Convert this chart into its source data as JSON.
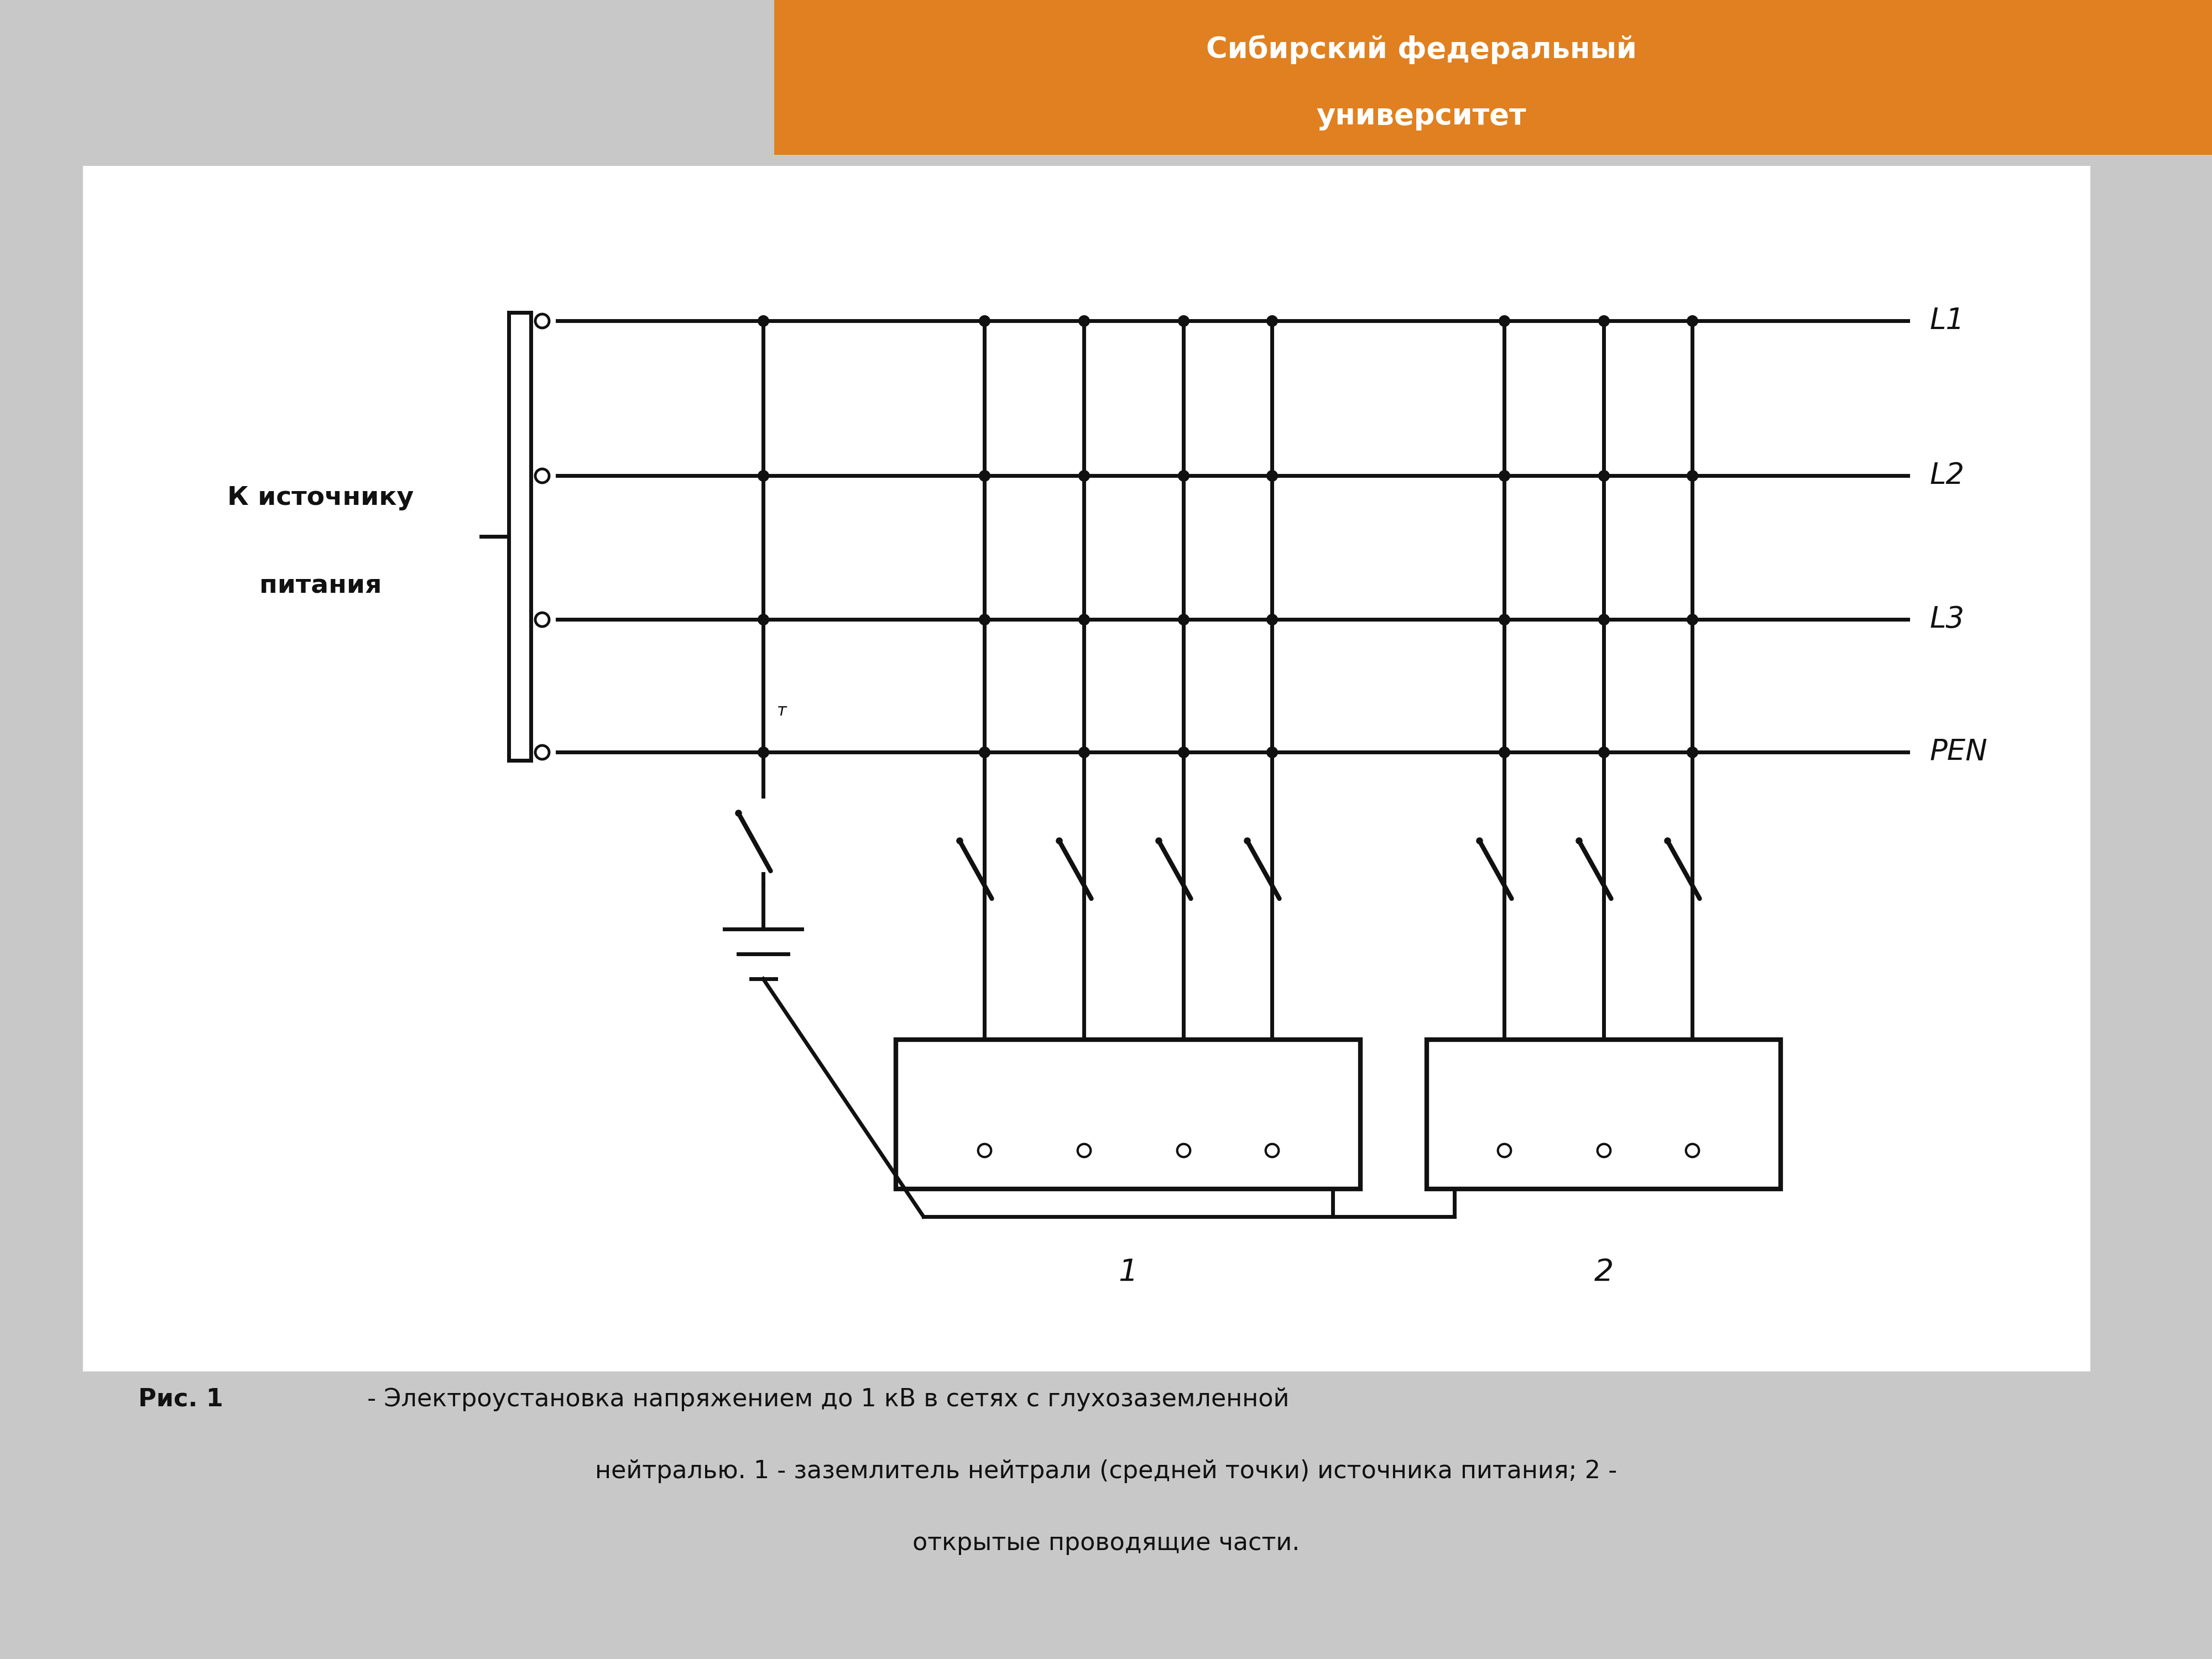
{
  "bg_color": "#c8c8c8",
  "diagram_bg": "#ffffff",
  "orange_color": "#e08020",
  "white_text": "#ffffff",
  "black": "#111111",
  "title_line1": "Сибирский федеральный",
  "title_line2": "университет",
  "left_label_line1": "К источнику",
  "left_label_line2": "питания",
  "line_labels": [
    "L1",
    "L2",
    "L3",
    "PEN"
  ],
  "caption_bold": "Рис. 1",
  "caption_rest": " - Электроустановка напряжением до 1 кВ в сетях с глухозаземленной",
  "caption_line2": "нейтралью. 1 - заземлитель нейтрали (средней точки) источника питания; 2 -",
  "caption_line3": "открытые проводящие части."
}
